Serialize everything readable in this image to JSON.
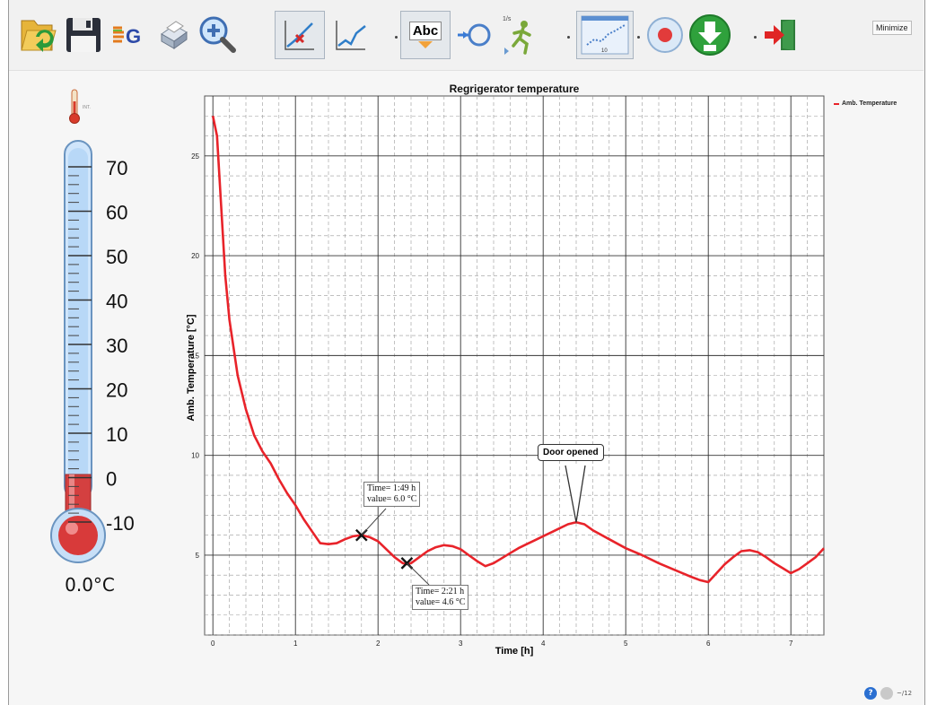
{
  "toolbar": {
    "minimize_label": "Minimize",
    "abc_label": "Abc",
    "speed_label": "1/s",
    "step_label": "10"
  },
  "thermometer": {
    "icon_label": "INT.",
    "scale_labels": [
      "70",
      "60",
      "50",
      "40",
      "30",
      "20",
      "10",
      "0",
      "-10"
    ],
    "value": "0.0°C"
  },
  "chart_data": {
    "type": "line",
    "title": "Regrigerator temperature",
    "xlabel": "Time [h]",
    "ylabel": "Amb. Temperature [°C]",
    "xlim": [
      -0.1,
      7.4
    ],
    "ylim": [
      1,
      28
    ],
    "x_ticks": [
      "0",
      "1",
      "2",
      "3",
      "4",
      "5",
      "6",
      "7"
    ],
    "y_ticks": [
      "5",
      "10",
      "15",
      "20",
      "25"
    ],
    "grid": true,
    "legend": "top-right",
    "series": [
      {
        "name": "Amb. Temperature",
        "color": "#e8232a",
        "x": [
          0.0,
          0.05,
          0.1,
          0.15,
          0.2,
          0.3,
          0.4,
          0.5,
          0.6,
          0.7,
          0.8,
          0.9,
          1.0,
          1.1,
          1.2,
          1.3,
          1.4,
          1.5,
          1.6,
          1.7,
          1.8,
          1.9,
          2.0,
          2.1,
          2.2,
          2.3,
          2.35,
          2.4,
          2.5,
          2.6,
          2.7,
          2.8,
          2.9,
          3.0,
          3.1,
          3.2,
          3.3,
          3.4,
          3.5,
          3.6,
          3.7,
          3.8,
          3.9,
          4.0,
          4.1,
          4.2,
          4.3,
          4.4,
          4.5,
          4.6,
          4.8,
          5.0,
          5.2,
          5.4,
          5.6,
          5.8,
          5.9,
          6.0,
          6.1,
          6.2,
          6.3,
          6.4,
          6.5,
          6.6,
          6.7,
          6.8,
          6.9,
          7.0,
          7.1,
          7.2,
          7.3,
          7.4
        ],
        "values": [
          27.0,
          26.0,
          22.5,
          19.0,
          16.8,
          14.0,
          12.3,
          11.0,
          10.2,
          9.6,
          8.8,
          8.1,
          7.5,
          6.8,
          6.2,
          5.6,
          5.55,
          5.6,
          5.8,
          5.95,
          6.0,
          5.9,
          5.7,
          5.3,
          4.9,
          4.6,
          4.55,
          4.6,
          4.9,
          5.2,
          5.4,
          5.5,
          5.45,
          5.3,
          5.0,
          4.7,
          4.45,
          4.6,
          4.85,
          5.1,
          5.35,
          5.55,
          5.75,
          5.95,
          6.15,
          6.35,
          6.55,
          6.65,
          6.55,
          6.25,
          5.8,
          5.35,
          5.0,
          4.6,
          4.25,
          3.9,
          3.75,
          3.65,
          4.1,
          4.55,
          4.9,
          5.2,
          5.25,
          5.15,
          4.9,
          4.6,
          4.35,
          4.1,
          4.3,
          4.6,
          4.9,
          5.35
        ]
      }
    ],
    "annotations": [
      {
        "x": 1.8,
        "y": 6.0,
        "lines": [
          "Time= 1:49 h",
          "value= 6.0 °C"
        ]
      },
      {
        "x": 2.35,
        "y": 4.6,
        "lines": [
          "Time= 2:21 h",
          "value= 4.6 °C"
        ]
      },
      {
        "x": 4.4,
        "y": 6.65,
        "text": "Door opened"
      }
    ]
  },
  "status": {
    "info_label": "?",
    "text": "~/12"
  }
}
